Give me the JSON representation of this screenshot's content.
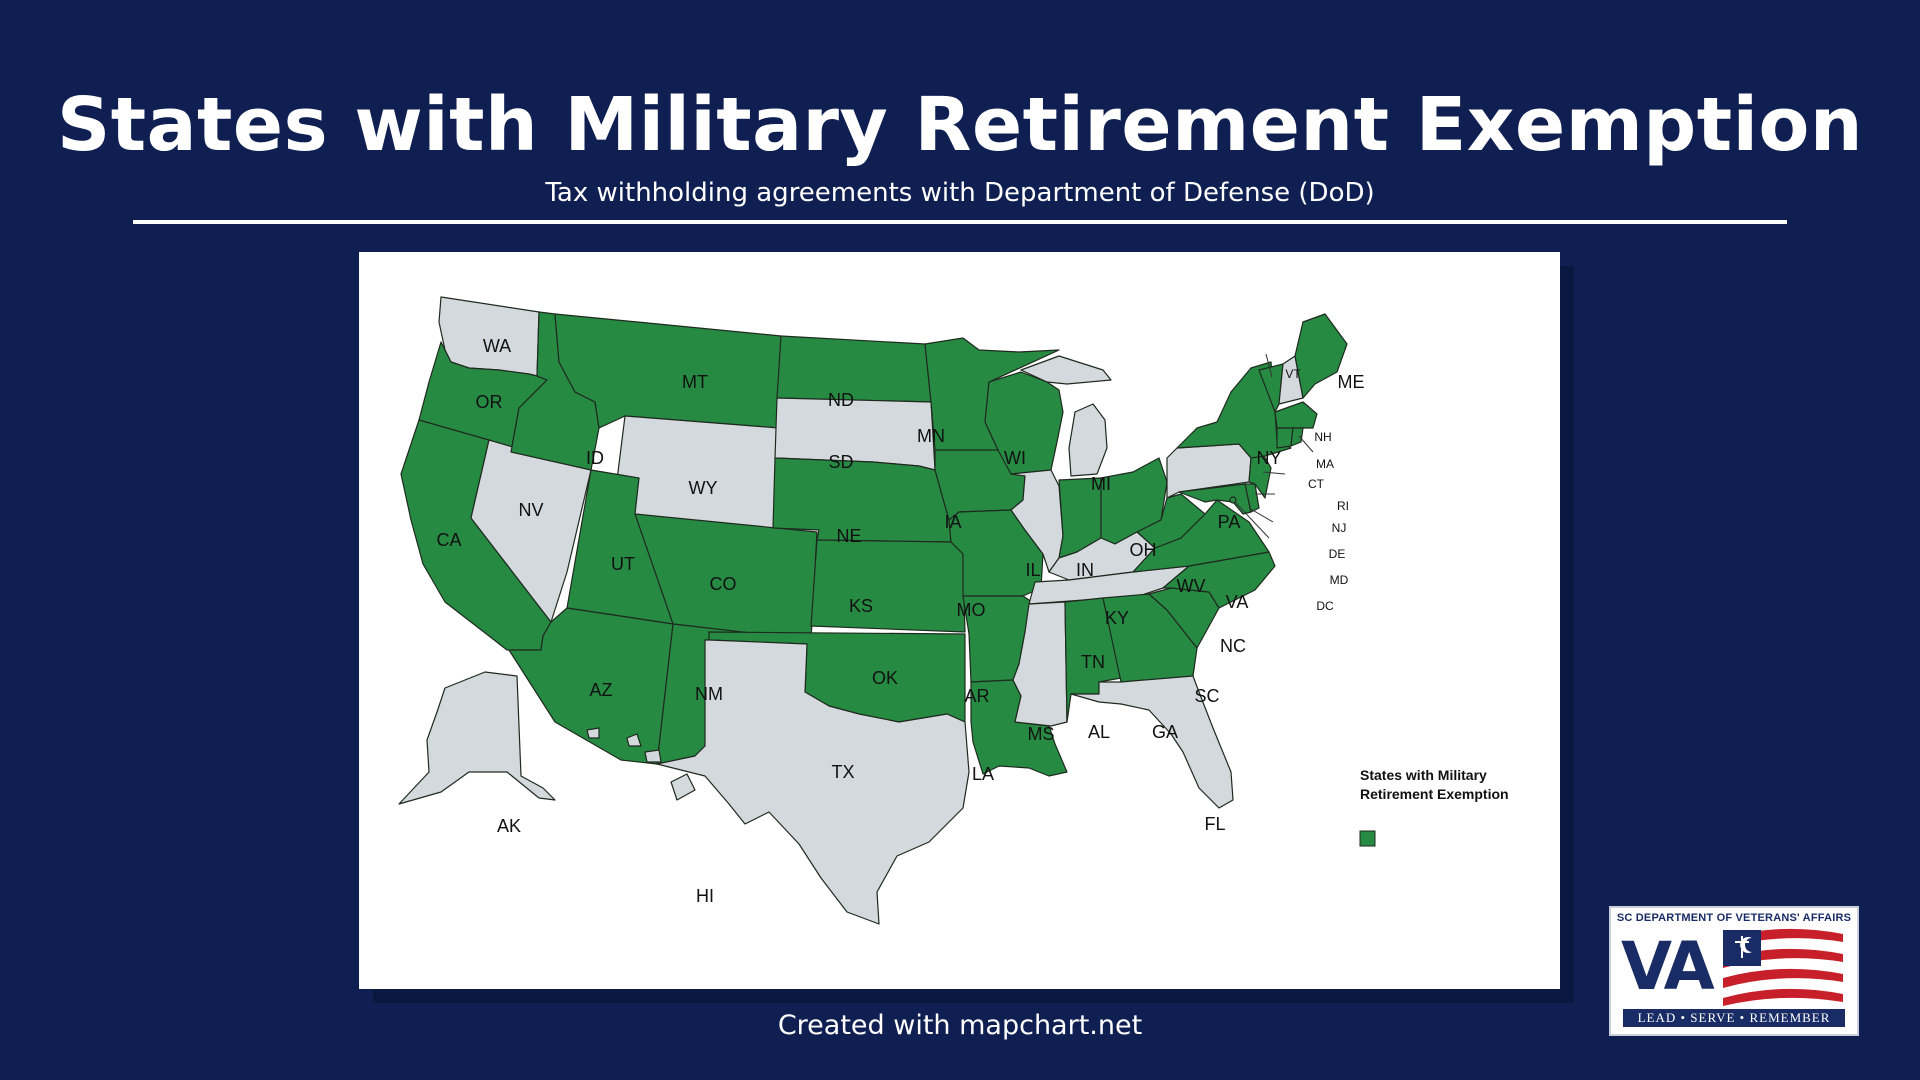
{
  "title": "States with Military Retirement Exemption",
  "subtitle": "Tax withholding agreements with Department of Defense (DoD)",
  "credit": "Created with mapchart.net",
  "legend": {
    "title_line1": "States with Military",
    "title_line2": "Retirement Exemption",
    "color": "#268a43"
  },
  "colors": {
    "background": "#0f1f52",
    "exempt": "#268a43",
    "not_exempt": "#d3d9dd"
  },
  "logo": {
    "org": "SC DEPARTMENT OF VETERANS' AFFAIRS",
    "letters": "VA",
    "motto": "LEAD • SERVE • REMEMBER"
  },
  "map_data": {
    "exempt_states": [
      "OR",
      "ID",
      "MT",
      "ND",
      "MN",
      "WI",
      "IA",
      "NE",
      "KS",
      "CO",
      "UT",
      "AZ",
      "NM",
      "OK",
      "AR",
      "MO",
      "LA",
      "AL",
      "GA",
      "SC",
      "NC",
      "VA",
      "WV",
      "OH",
      "IN",
      "NY",
      "VT",
      "ME",
      "MA",
      "CT",
      "RI",
      "NJ",
      "DE",
      "MD",
      "DC",
      "CA"
    ],
    "non_exempt_states": [
      "WA",
      "NV",
      "WY",
      "SD",
      "IL",
      "MI",
      "KY",
      "TN",
      "MS",
      "TX",
      "FL",
      "PA",
      "NH",
      "AK",
      "HI"
    ],
    "labels": {
      "WA": "WA",
      "OR": "OR",
      "CA": "CA",
      "NV": "NV",
      "ID": "ID",
      "MT": "MT",
      "WY": "WY",
      "UT": "UT",
      "AZ": "AZ",
      "CO": "CO",
      "NM": "NM",
      "ND": "ND",
      "SD": "SD",
      "NE": "NE",
      "KS": "KS",
      "OK": "OK",
      "TX": "TX",
      "MN": "MN",
      "IA": "IA",
      "MO": "MO",
      "AR": "AR",
      "LA": "LA",
      "WI": "WI",
      "IL": "IL",
      "MI": "MI",
      "IN": "IN",
      "OH": "OH",
      "KY": "KY",
      "TN": "TN",
      "MS": "MS",
      "AL": "AL",
      "GA": "GA",
      "FL": "FL",
      "SC": "SC",
      "NC": "NC",
      "VA": "VA",
      "WV": "WV",
      "PA": "PA",
      "NY": "NY",
      "VT": "VT",
      "NH": "NH",
      "ME": "ME",
      "MA": "MA",
      "CT": "CT",
      "RI": "RI",
      "NJ": "NJ",
      "DE": "DE",
      "MD": "MD",
      "DC": "DC",
      "AK": "AK",
      "HI": "HI"
    }
  }
}
